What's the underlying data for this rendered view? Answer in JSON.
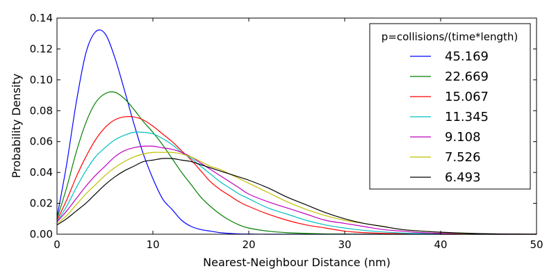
{
  "chart_data": {
    "type": "line",
    "xlabel": "Nearest-Neighbour Distance (nm)",
    "ylabel": "Probability Density",
    "xlim": [
      0,
      50
    ],
    "ylim": [
      0,
      0.14
    ],
    "xticks": [
      "0",
      "10",
      "20",
      "30",
      "40",
      "50"
    ],
    "yticks": [
      "0.00",
      "0.02",
      "0.04",
      "0.06",
      "0.08",
      "0.10",
      "0.12",
      "0.14"
    ],
    "grid": false,
    "legend_title": "p=collisions/(time*length)",
    "legend_position": "top-right",
    "x": [
      0,
      1,
      2,
      3,
      4,
      5,
      6,
      7,
      8,
      9,
      10,
      11,
      12,
      13,
      14,
      15,
      16,
      17,
      18,
      19,
      20,
      22,
      24,
      26,
      28,
      30,
      32,
      34,
      36,
      38,
      40,
      42,
      44,
      46,
      48,
      50
    ],
    "series": [
      {
        "name": "45.169",
        "color": "#0000ff",
        "values": [
          0.011,
          0.045,
          0.085,
          0.117,
          0.131,
          0.13,
          0.115,
          0.094,
          0.072,
          0.052,
          0.036,
          0.023,
          0.016,
          0.009,
          0.005,
          0.003,
          0.002,
          0.001,
          0.0005,
          0.0002,
          0.0001,
          0,
          0,
          0,
          0,
          0,
          0,
          0,
          0,
          0,
          0,
          0,
          0,
          0,
          0,
          0
        ]
      },
      {
        "name": "22.669",
        "color": "#008000",
        "values": [
          0.01,
          0.03,
          0.053,
          0.072,
          0.085,
          0.091,
          0.092,
          0.088,
          0.081,
          0.073,
          0.066,
          0.058,
          0.049,
          0.04,
          0.032,
          0.024,
          0.018,
          0.013,
          0.009,
          0.006,
          0.004,
          0.002,
          0.001,
          0.0005,
          0.0002,
          0.0001,
          0,
          0,
          0,
          0,
          0,
          0,
          0,
          0,
          0,
          0
        ]
      },
      {
        "name": "15.067",
        "color": "#ff0000",
        "values": [
          0.009,
          0.022,
          0.037,
          0.05,
          0.061,
          0.069,
          0.074,
          0.076,
          0.076,
          0.074,
          0.07,
          0.065,
          0.06,
          0.054,
          0.048,
          0.041,
          0.034,
          0.029,
          0.025,
          0.021,
          0.018,
          0.013,
          0.009,
          0.006,
          0.004,
          0.002,
          0.001,
          0.0006,
          0.0003,
          0.0001,
          0,
          0,
          0,
          0,
          0,
          0
        ]
      },
      {
        "name": "11.345",
        "color": "#00bfbf",
        "values": [
          0.008,
          0.018,
          0.03,
          0.041,
          0.05,
          0.056,
          0.061,
          0.064,
          0.066,
          0.066,
          0.065,
          0.062,
          0.058,
          0.053,
          0.049,
          0.044,
          0.039,
          0.034,
          0.03,
          0.026,
          0.023,
          0.017,
          0.013,
          0.009,
          0.006,
          0.004,
          0.0025,
          0.0015,
          0.0008,
          0.0004,
          0.0002,
          0.0001,
          0,
          0,
          0,
          0
        ]
      },
      {
        "name": "9.108",
        "color": "#bf00bf",
        "values": [
          0.008,
          0.015,
          0.023,
          0.031,
          0.038,
          0.044,
          0.05,
          0.054,
          0.056,
          0.057,
          0.057,
          0.056,
          0.055,
          0.053,
          0.05,
          0.046,
          0.042,
          0.038,
          0.034,
          0.03,
          0.026,
          0.021,
          0.017,
          0.013,
          0.009,
          0.007,
          0.005,
          0.003,
          0.002,
          0.001,
          0.0006,
          0.0003,
          0.0001,
          0,
          0,
          0
        ]
      },
      {
        "name": "7.526",
        "color": "#bfbf00",
        "values": [
          0.007,
          0.012,
          0.019,
          0.026,
          0.032,
          0.038,
          0.043,
          0.047,
          0.05,
          0.052,
          0.053,
          0.053,
          0.053,
          0.052,
          0.05,
          0.047,
          0.044,
          0.042,
          0.039,
          0.036,
          0.033,
          0.027,
          0.021,
          0.016,
          0.012,
          0.009,
          0.007,
          0.005,
          0.003,
          0.002,
          0.0012,
          0.0006,
          0.0003,
          0.0001,
          0,
          0
        ]
      },
      {
        "name": "6.493",
        "color": "#000000",
        "values": [
          0.006,
          0.01,
          0.015,
          0.02,
          0.026,
          0.032,
          0.037,
          0.041,
          0.044,
          0.047,
          0.048,
          0.049,
          0.049,
          0.048,
          0.047,
          0.045,
          0.043,
          0.041,
          0.039,
          0.037,
          0.035,
          0.03,
          0.024,
          0.019,
          0.014,
          0.01,
          0.007,
          0.005,
          0.003,
          0.002,
          0.0013,
          0.0008,
          0.0004,
          0.0002,
          0.0001,
          0
        ]
      }
    ]
  }
}
